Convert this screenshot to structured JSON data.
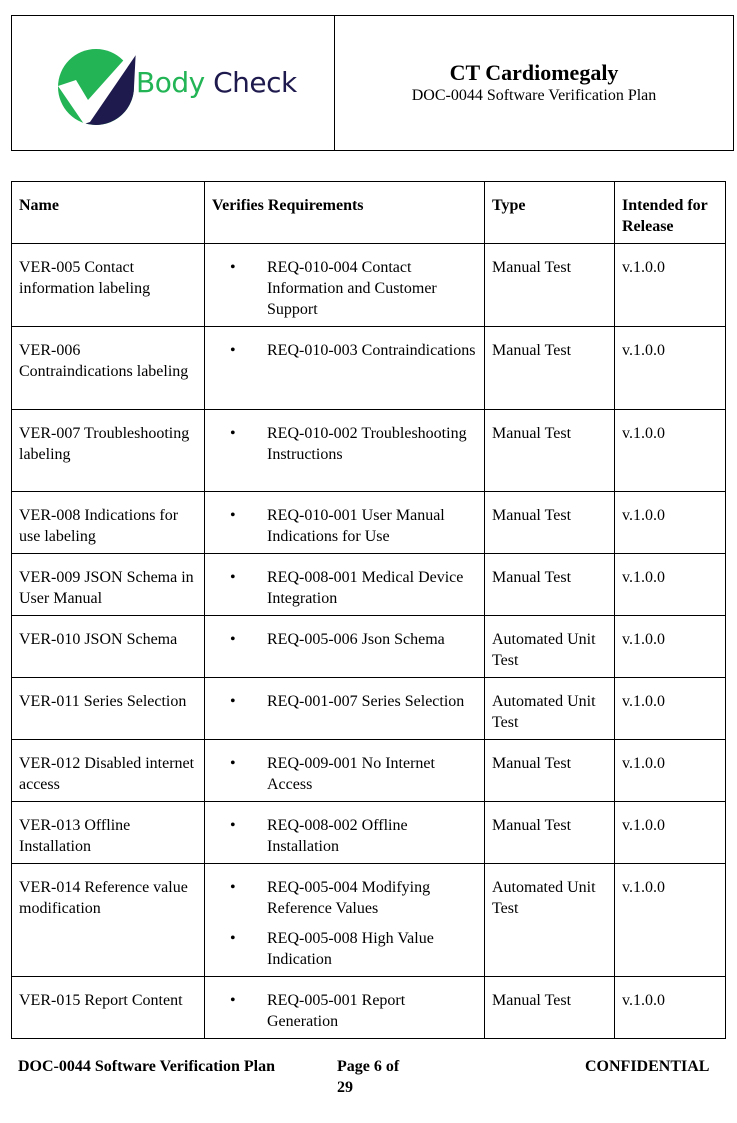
{
  "header": {
    "logo_text": "Body Check",
    "logo_text_part1": "Body",
    "logo_text_part2": "Check",
    "title": "CT Cardiomegaly",
    "subtitle": "DOC-0044 Software Verification Plan",
    "colors": {
      "green": "#22b455",
      "navy": "#1f1a4e"
    }
  },
  "table": {
    "columns": [
      "Name",
      "Verifies Requirements",
      "Type",
      "Intended for Release"
    ],
    "rows": [
      {
        "name": "VER-005 Contact information labeling",
        "reqs": [
          "REQ-010-004 Contact Information and Customer Support"
        ],
        "type": "Manual Test",
        "release": "v.1.0.0"
      },
      {
        "name": "VER-006 Contraindications labeling",
        "reqs": [
          "REQ-010-003 Contraindications"
        ],
        "type": "Manual Test",
        "release": "v.1.0.0"
      },
      {
        "name": "VER-007 Troubleshooting labeling",
        "reqs": [
          "REQ-010-002 Troubleshooting Instructions"
        ],
        "type": "Manual Test",
        "release": "v.1.0.0"
      },
      {
        "name": "VER-008 Indications for use labeling",
        "reqs": [
          "REQ-010-001 User Manual Indications for Use"
        ],
        "type": "Manual Test",
        "release": "v.1.0.0"
      },
      {
        "name": "VER-009 JSON Schema in User Manual",
        "reqs": [
          "REQ-008-001 Medical Device Integration"
        ],
        "type": "Manual Test",
        "release": "v.1.0.0"
      },
      {
        "name": "VER-010 JSON Schema",
        "reqs": [
          "REQ-005-006 Json Schema"
        ],
        "type": "Automated Unit Test",
        "release": "v.1.0.0"
      },
      {
        "name": "VER-011 Series Selection",
        "reqs": [
          "REQ-001-007 Series Selection"
        ],
        "type": "Automated Unit Test",
        "release": "v.1.0.0"
      },
      {
        "name": "VER-012 Disabled internet access",
        "reqs": [
          "REQ-009-001 No Internet Access"
        ],
        "type": "Manual Test",
        "release": "v.1.0.0"
      },
      {
        "name": "VER-013 Offline Installation",
        "reqs": [
          "REQ-008-002 Offline Installation"
        ],
        "type": "Manual Test",
        "release": "v.1.0.0"
      },
      {
        "name": "VER-014 Reference value modification",
        "reqs": [
          "REQ-005-004 Modifying Reference Values",
          "REQ-005-008 High Value Indication"
        ],
        "type": "Automated Unit Test",
        "release": "v.1.0.0"
      },
      {
        "name": "VER-015 Report Content",
        "reqs": [
          "REQ-005-001 Report Generation"
        ],
        "type": "Manual Test",
        "release": "v.1.0.0"
      }
    ]
  },
  "footer": {
    "doc": "DOC-0044 Software Verification Plan",
    "page": "Page 6 of 29",
    "confidential": "CONFIDENTIAL"
  }
}
